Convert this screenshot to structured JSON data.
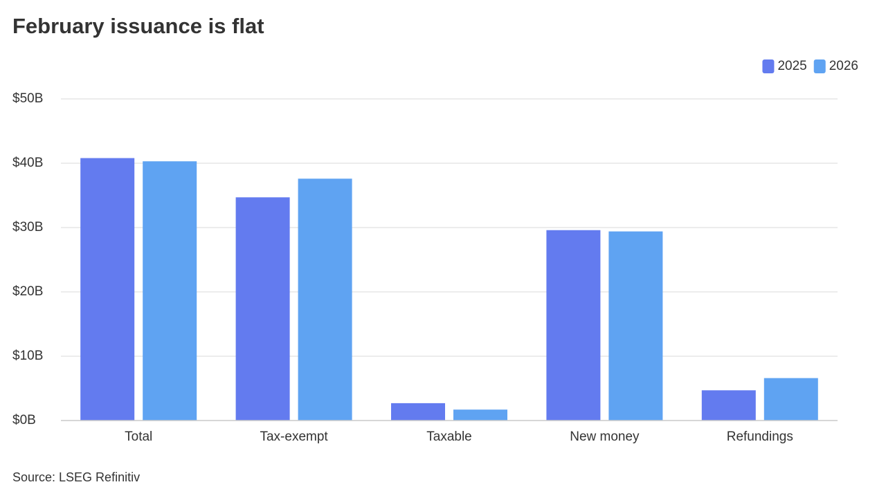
{
  "chart_data": {
    "type": "bar",
    "title": "February issuance is flat",
    "source": "Source: LSEG Refinitiv",
    "categories": [
      "Total",
      "Tax-exempt",
      "Taxable",
      "New money",
      "Refundings"
    ],
    "series": [
      {
        "name": "2025",
        "color": "#637bef",
        "values": [
          40.8,
          34.7,
          2.7,
          29.6,
          4.7
        ]
      },
      {
        "name": "2026",
        "color": "#5fa3f2",
        "values": [
          40.3,
          37.6,
          1.7,
          29.4,
          6.6
        ]
      }
    ],
    "ylim": [
      0,
      50
    ],
    "yticks": [
      {
        "value": 0,
        "label": "$0B"
      },
      {
        "value": 10,
        "label": "$10B"
      },
      {
        "value": 20,
        "label": "$20B"
      },
      {
        "value": 30,
        "label": "$30B"
      },
      {
        "value": 40,
        "label": "$40B"
      },
      {
        "value": 50,
        "label": "$50B"
      }
    ],
    "grid": true,
    "legend": "top-right"
  }
}
